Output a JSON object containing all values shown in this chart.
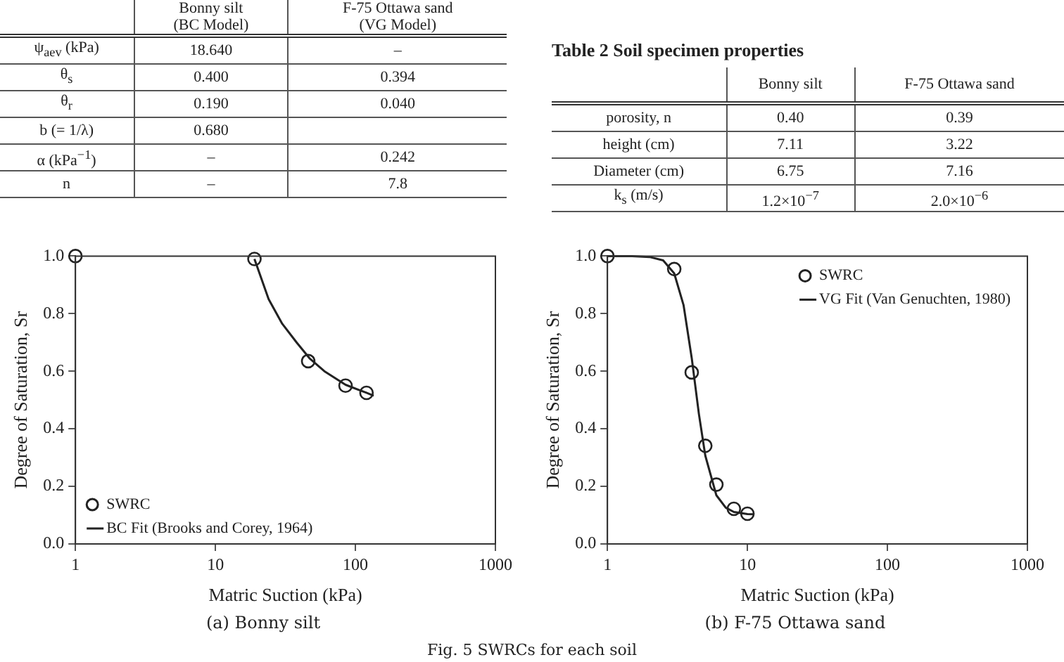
{
  "chart_data": [
    {
      "type": "other",
      "annotations": [
        null,
        "Bonny silt\n(BC Model)",
        "F-75 Ottawa sand\n(VG Model)",
        "ψ$_{aev}$ (kPa)",
        "18.640",
        "–",
        "θ$_{s}$",
        "0.400",
        "0.394",
        "θ$_{r}$",
        "0.190",
        "0.040",
        "b (= 1/λ)",
        "0.680",
        null,
        "α (kPa$^{−1}$)",
        "–",
        "0.242",
        "n",
        "–",
        "7.8"
      ]
    },
    {
      "type": "other",
      "title": "Table 2 Soil specimen properties",
      "annotations": [
        null,
        "Bonny silt",
        "F-75 Ottawa sand",
        "porosity, n",
        "0.40",
        "0.39",
        "height (cm)",
        "7.11",
        "3.22",
        "Diameter (cm)",
        "6.75",
        "7.16",
        "k$_{s}$ (m/s)",
        "1.2×10$^{−7}$",
        "2.0×10$^{−6}$"
      ]
    },
    {
      "type": "scatter",
      "subtitle": "(a) Bonny silt",
      "xlabel": "Matric Suction (kPa)",
      "ylabel": "Degree of Saturation, Sr",
      "log": "x",
      "legend": "bottom left",
      "xlim": [
        1,
        1000
      ],
      "xticks": [
        1,
        10,
        100,
        1000
      ],
      "ylim": [
        0,
        1
      ],
      "yticks": [
        {
          "value": 0,
          "label": "0.0"
        },
        {
          "value": 0.2,
          "label": "0.2"
        },
        {
          "value": 0.4,
          "label": "0.4"
        },
        {
          "value": 0.6,
          "label": "0.6"
        },
        {
          "value": 0.8,
          "label": "0.8"
        },
        {
          "value": 1,
          "label": "1.0"
        }
      ],
      "annotations": [
        "Fig. 5 SWRCs for each soil"
      ],
      "series": [
        {
          "name": "SWRC",
          "type": "scatter",
          "marker": "circle",
          "color": "#222222",
          "x": [
            1,
            19,
            46,
            85,
            120
          ],
          "values": [
            1.0,
            0.99,
            0.635,
            0.55,
            0.525
          ]
        },
        {
          "name": "BC Fit (Brooks and Corey, 1964)",
          "type": "line",
          "marker": "none",
          "color": "#222222",
          "x": [
            19,
            24,
            30,
            38,
            47,
            60,
            85,
            120,
            135
          ],
          "values": [
            0.99,
            0.85,
            0.765,
            0.7,
            0.645,
            0.6,
            0.553,
            0.525,
            0.515
          ]
        }
      ]
    },
    {
      "type": "scatter",
      "subtitle": "(b) F-75 Ottawa sand",
      "xlabel": "Matric Suction (kPa)",
      "ylabel": "Degree of Saturation, Sr",
      "log": "x",
      "legend": "top right",
      "xlim": [
        1,
        1000
      ],
      "xticks": [
        1,
        10,
        100,
        1000
      ],
      "ylim": [
        0,
        1
      ],
      "yticks": [
        {
          "value": 0,
          "label": "0.0"
        },
        {
          "value": 0.2,
          "label": "0.2"
        },
        {
          "value": 0.4,
          "label": "0.4"
        },
        {
          "value": 0.6,
          "label": "0.6"
        },
        {
          "value": 0.8,
          "label": "0.8"
        },
        {
          "value": 1,
          "label": "1.0"
        }
      ],
      "series": [
        {
          "name": "SWRC",
          "type": "scatter",
          "marker": "circle",
          "color": "#222222",
          "x": [
            1,
            3,
            4,
            5,
            6,
            8,
            10
          ],
          "values": [
            1.0,
            0.955,
            0.596,
            0.341,
            0.206,
            0.122,
            0.105
          ]
        },
        {
          "name": "VG Fit (Van Genuchten, 1980)",
          "type": "line",
          "marker": "none",
          "color": "#222222",
          "x": [
            1,
            1.5,
            2,
            2.5,
            3,
            3.5,
            4,
            4.5,
            5,
            6,
            7,
            8,
            10,
            11
          ],
          "values": [
            1.0,
            1.0,
            0.997,
            0.985,
            0.94,
            0.829,
            0.646,
            0.452,
            0.307,
            0.169,
            0.126,
            0.111,
            0.104,
            0.103
          ]
        }
      ]
    }
  ]
}
